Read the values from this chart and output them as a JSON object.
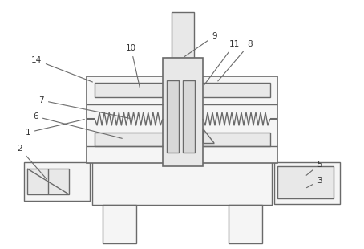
{
  "bg_color": "#ffffff",
  "line_color": "#6a6a6a",
  "lw": 1.0,
  "fig_w": 4.54,
  "fig_h": 3.1,
  "label_fs": 7.5,
  "label_color": "#333333",
  "fill_light": "#f5f5f5",
  "fill_mid": "#e8e8e8",
  "fill_dark": "#d8d8d8"
}
